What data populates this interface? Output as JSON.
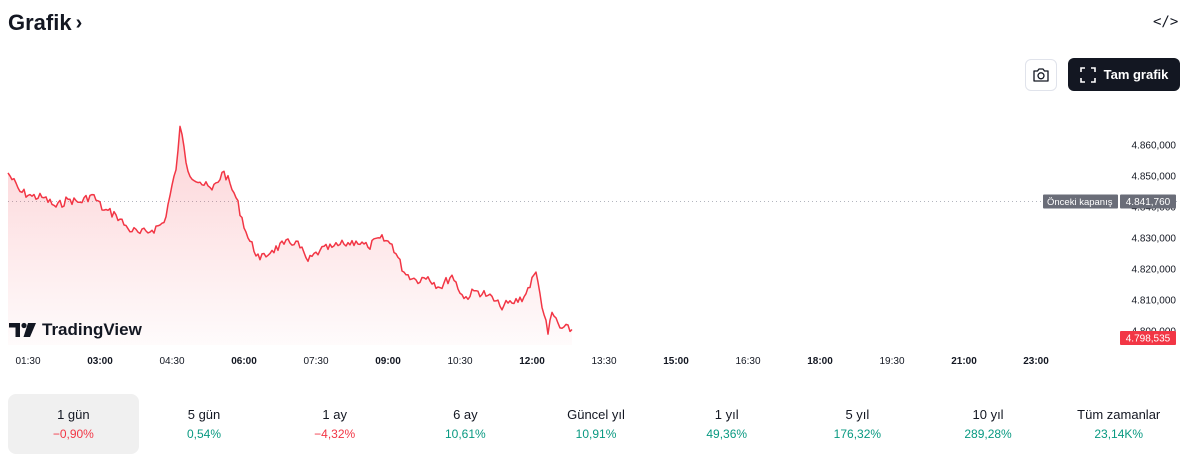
{
  "header": {
    "title": "Grafik",
    "chevron": "›",
    "embed_label": "</>"
  },
  "toolbar": {
    "camera_icon": "camera-icon",
    "full_chart_label": "Tam grafik"
  },
  "brand": {
    "name": "TradingView"
  },
  "colors": {
    "line": "#f23645",
    "positive": "#089981",
    "negative": "#f23645",
    "dark": "#131722"
  },
  "chart_data": {
    "type": "area",
    "x_tick_labels": [
      "01:30",
      "03:00",
      "04:30",
      "06:00",
      "07:30",
      "09:00",
      "10:30",
      "12:00",
      "13:30",
      "15:00",
      "16:30",
      "18:00",
      "19:30",
      "21:00",
      "23:00"
    ],
    "y_tick_labels": [
      "4.860,000",
      "4.850,000",
      "4.840,000",
      "4.830,000",
      "4.820,000",
      "4.810,000",
      "4.800,000"
    ],
    "ylim": [
      4797,
      4868
    ],
    "x": [
      "01:00",
      "01:15",
      "01:30",
      "01:45",
      "02:00",
      "02:15",
      "02:30",
      "02:45",
      "03:00",
      "03:15",
      "03:30",
      "03:45",
      "04:00",
      "04:15",
      "04:30",
      "04:35",
      "04:45",
      "05:00",
      "05:15",
      "05:30",
      "05:45",
      "06:00",
      "06:15",
      "06:30",
      "06:45",
      "07:00",
      "07:15",
      "07:30",
      "07:45",
      "08:00",
      "08:15",
      "08:30",
      "08:45",
      "09:00",
      "09:15",
      "09:30",
      "09:45",
      "10:00",
      "10:15",
      "10:30",
      "10:45",
      "11:00",
      "11:15",
      "11:30",
      "11:45",
      "12:00",
      "12:05",
      "12:15",
      "12:20",
      "12:30",
      "12:45"
    ],
    "values": [
      4851.0,
      4845.0,
      4843.5,
      4843.0,
      4840.0,
      4842.5,
      4841.5,
      4844.0,
      4839.0,
      4837.5,
      4833.0,
      4831.5,
      4832.5,
      4835.0,
      4852.0,
      4866.0,
      4851.5,
      4848.0,
      4845.5,
      4851.5,
      4843.0,
      4830.0,
      4823.0,
      4826.0,
      4828.0,
      4829.0,
      4822.5,
      4826.0,
      4827.0,
      4828.0,
      4829.0,
      4827.0,
      4830.0,
      4828.0,
      4819.0,
      4816.5,
      4817.5,
      4814.0,
      4818.0,
      4810.5,
      4813.0,
      4811.5,
      4808.0,
      4809.0,
      4811.0,
      4819.0,
      4812.0,
      4799.0,
      4806.0,
      4801.0,
      4800.5
    ],
    "previous_close": {
      "label": "Önceki kapanış",
      "value_label": "4.841,760",
      "value": 4841.76
    },
    "last_price": {
      "value_label": "4.798,535",
      "value": 4798.535
    }
  },
  "periods": [
    {
      "label": "1 gün",
      "value": "−0,90%",
      "trend": "neg",
      "active": true
    },
    {
      "label": "5 gün",
      "value": "0,54%",
      "trend": "pos",
      "active": false
    },
    {
      "label": "1 ay",
      "value": "−4,32%",
      "trend": "neg",
      "active": false
    },
    {
      "label": "6 ay",
      "value": "10,61%",
      "trend": "pos",
      "active": false
    },
    {
      "label": "Güncel yıl",
      "value": "10,91%",
      "trend": "pos",
      "active": false
    },
    {
      "label": "1 yıl",
      "value": "49,36%",
      "trend": "pos",
      "active": false
    },
    {
      "label": "5 yıl",
      "value": "176,32%",
      "trend": "pos",
      "active": false
    },
    {
      "label": "10 yıl",
      "value": "289,28%",
      "trend": "pos",
      "active": false
    },
    {
      "label": "Tüm zamanlar",
      "value": "23,14K%",
      "trend": "pos",
      "active": false
    }
  ]
}
